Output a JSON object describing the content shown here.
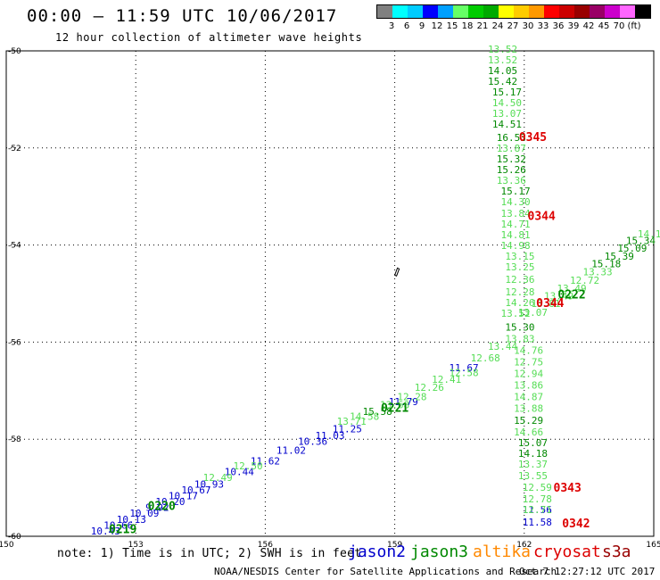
{
  "header": {
    "title": "00:00 — 11:59 UTC 10/06/2017",
    "subtitle": "12 hour collection of altimeter wave heights"
  },
  "color_scale": {
    "colors": [
      "#808080",
      "#00ffff",
      "#00ccff",
      "#0000ff",
      "#00a0ff",
      "#66ff66",
      "#00cc00",
      "#00aa00",
      "#ffff00",
      "#ffcc00",
      "#ff9900",
      "#ff0000",
      "#cc0000",
      "#990000",
      "#990066",
      "#cc00cc",
      "#ff66ff",
      "#000000"
    ],
    "labels": [
      "3",
      "6",
      "9",
      "12",
      "15",
      "18",
      "21",
      "24",
      "27",
      "30",
      "33",
      "36",
      "39",
      "42",
      "45",
      "70",
      "(ft)"
    ]
  },
  "footer": {
    "note": "note: 1) Time is in UTC; 2) SWH is in feet",
    "satellites": [
      {
        "name": "jason2",
        "color": "#0000cc"
      },
      {
        "name": "jason3",
        "color": "#008800"
      },
      {
        "name": "altika",
        "color": "#ff8800"
      },
      {
        "name": "cryosat",
        "color": "#dd0000"
      },
      {
        "name": "s3a",
        "color": "#990000"
      }
    ],
    "credit": "NOAA/NESDIS Center for Satellite Applications and Research",
    "timestamp": "Oct  7 12:27:12 UTC 2017"
  },
  "chart_data": {
    "type": "scatter",
    "title": "00:00 — 11:59 UTC 10/06/2017",
    "subtitle": "12 hour collection of altimeter wave heights",
    "xlim": [
      150,
      165
    ],
    "ylim": [
      -60,
      -50
    ],
    "x_ticks": [
      "150",
      "153",
      "156",
      "159",
      "162",
      "165"
    ],
    "y_ticks": [
      "-50",
      "-52",
      "-54",
      "-56",
      "-58",
      "-60"
    ],
    "grid": true,
    "colors": {
      "light": "#55dd55",
      "dark": "#008800",
      "blue": "#0000cc",
      "red": "#dd0000"
    },
    "series": [
      {
        "name": "jason2",
        "labels": [
          {
            "x": 152.3,
            "y": -59.96,
            "t": "10.43",
            "c": "blue"
          },
          {
            "x": 152.6,
            "y": -59.84,
            "t": "10.66",
            "c": "blue"
          },
          {
            "x": 152.9,
            "y": -59.72,
            "t": "10.13",
            "c": "blue"
          },
          {
            "x": 153.2,
            "y": -59.6,
            "t": "10.09",
            "c": "blue"
          },
          {
            "x": 153.5,
            "y": -59.48,
            "t": "9.92",
            "c": "blue"
          },
          {
            "x": 153.8,
            "y": -59.36,
            "t": "10.20",
            "c": "blue"
          },
          {
            "x": 154.1,
            "y": -59.24,
            "t": "10.17",
            "c": "blue"
          },
          {
            "x": 154.4,
            "y": -59.12,
            "t": "10.67",
            "c": "blue"
          },
          {
            "x": 154.7,
            "y": -59.0,
            "t": "10.93",
            "c": "blue"
          },
          {
            "x": 155.4,
            "y": -58.74,
            "t": "10.44",
            "c": "blue"
          },
          {
            "x": 156.0,
            "y": -58.52,
            "t": "11.62",
            "c": "blue"
          },
          {
            "x": 156.6,
            "y": -58.3,
            "t": "11.02",
            "c": "blue"
          },
          {
            "x": 157.1,
            "y": -58.12,
            "t": "10.36",
            "c": "blue"
          },
          {
            "x": 157.5,
            "y": -58.0,
            "t": "11.03",
            "c": "blue"
          },
          {
            "x": 157.9,
            "y": -57.86,
            "t": "11.25",
            "c": "blue"
          },
          {
            "x": 159.2,
            "y": -57.3,
            "t": "11.79",
            "c": "blue"
          },
          {
            "x": 160.6,
            "y": -56.6,
            "t": "11.67",
            "c": "blue"
          },
          {
            "x": 162.3,
            "y": -59.52,
            "t": "11.56",
            "c": "blue"
          },
          {
            "x": 162.3,
            "y": -59.78,
            "t": "11.58",
            "c": "blue"
          }
        ]
      },
      {
        "name": "jason3",
        "labels": [
          {
            "x": 161.5,
            "y": -50.04,
            "t": "13.52",
            "c": "light"
          },
          {
            "x": 161.5,
            "y": -50.26,
            "t": "13.52",
            "c": "light"
          },
          {
            "x": 161.5,
            "y": -50.48,
            "t": "14.05",
            "c": "dark"
          },
          {
            "x": 161.5,
            "y": -50.7,
            "t": "15.42",
            "c": "dark"
          },
          {
            "x": 161.6,
            "y": -50.92,
            "t": "15.17",
            "c": "dark"
          },
          {
            "x": 161.6,
            "y": -51.14,
            "t": "14.50",
            "c": "light"
          },
          {
            "x": 161.6,
            "y": -51.36,
            "t": "13.07",
            "c": "light"
          },
          {
            "x": 161.6,
            "y": -51.58,
            "t": "14.51",
            "c": "dark"
          },
          {
            "x": 161.7,
            "y": -51.86,
            "t": "16.53",
            "c": "dark"
          },
          {
            "x": 161.7,
            "y": -52.08,
            "t": "13.87",
            "c": "light"
          },
          {
            "x": 161.7,
            "y": -52.3,
            "t": "15.32",
            "c": "dark"
          },
          {
            "x": 161.7,
            "y": -52.52,
            "t": "15.26",
            "c": "dark"
          },
          {
            "x": 161.7,
            "y": -52.74,
            "t": "13.36",
            "c": "light"
          },
          {
            "x": 161.8,
            "y": -52.96,
            "t": "15.17",
            "c": "dark"
          },
          {
            "x": 161.8,
            "y": -53.18,
            "t": "14.30",
            "c": "light"
          },
          {
            "x": 161.8,
            "y": -53.42,
            "t": "13.84",
            "c": "light"
          },
          {
            "x": 161.8,
            "y": -53.64,
            "t": "14.71",
            "c": "light"
          },
          {
            "x": 161.8,
            "y": -53.86,
            "t": "14.81",
            "c": "light"
          },
          {
            "x": 161.8,
            "y": -54.08,
            "t": "14.98",
            "c": "light"
          },
          {
            "x": 161.9,
            "y": -54.3,
            "t": "13.15",
            "c": "light"
          },
          {
            "x": 161.9,
            "y": -54.52,
            "t": "13.25",
            "c": "light"
          },
          {
            "x": 161.9,
            "y": -54.78,
            "t": "12.36",
            "c": "light"
          },
          {
            "x": 161.9,
            "y": -55.04,
            "t": "12.28",
            "c": "light"
          },
          {
            "x": 161.9,
            "y": -55.26,
            "t": "14.26",
            "c": "light"
          },
          {
            "x": 161.8,
            "y": -55.48,
            "t": "13.52",
            "c": "light"
          },
          {
            "x": 161.9,
            "y": -55.76,
            "t": "15.30",
            "c": "dark"
          },
          {
            "x": 161.9,
            "y": -56.0,
            "t": "13.83",
            "c": "light"
          },
          {
            "x": 162.1,
            "y": -56.24,
            "t": "14.76",
            "c": "light"
          },
          {
            "x": 162.1,
            "y": -56.48,
            "t": "12.75",
            "c": "light"
          },
          {
            "x": 162.1,
            "y": -56.72,
            "t": "12.94",
            "c": "light"
          },
          {
            "x": 162.1,
            "y": -56.96,
            "t": "13.86",
            "c": "light"
          },
          {
            "x": 162.1,
            "y": -57.2,
            "t": "14.87",
            "c": "light"
          },
          {
            "x": 162.1,
            "y": -57.44,
            "t": "13.88",
            "c": "light"
          },
          {
            "x": 162.1,
            "y": -57.68,
            "t": "15.29",
            "c": "dark"
          },
          {
            "x": 162.1,
            "y": -57.92,
            "t": "14.66",
            "c": "light"
          },
          {
            "x": 162.2,
            "y": -58.14,
            "t": "15.07",
            "c": "dark"
          },
          {
            "x": 162.2,
            "y": -58.36,
            "t": "14.18",
            "c": "dark"
          },
          {
            "x": 162.2,
            "y": -58.58,
            "t": "13.37",
            "c": "light"
          },
          {
            "x": 162.2,
            "y": -58.82,
            "t": "13.55",
            "c": "light"
          },
          {
            "x": 162.3,
            "y": -59.06,
            "t": "12.59",
            "c": "light"
          },
          {
            "x": 162.3,
            "y": -59.3,
            "t": "12.78",
            "c": "light"
          },
          {
            "x": 162.3,
            "y": -59.52,
            "t": "12.71",
            "c": "light"
          },
          {
            "x": 154.9,
            "y": -58.86,
            "t": "12.49",
            "c": "light"
          },
          {
            "x": 155.6,
            "y": -58.62,
            "t": "12.50",
            "c": "light"
          },
          {
            "x": 158.0,
            "y": -57.7,
            "t": "13.71",
            "c": "light"
          },
          {
            "x": 158.3,
            "y": -57.6,
            "t": "14.58",
            "c": "light"
          },
          {
            "x": 158.6,
            "y": -57.5,
            "t": "15.58",
            "c": "dark"
          },
          {
            "x": 159.0,
            "y": -57.36,
            "t": "13.68",
            "c": "light"
          },
          {
            "x": 159.4,
            "y": -57.2,
            "t": "12.28",
            "c": "light"
          },
          {
            "x": 159.8,
            "y": -57.0,
            "t": "12.26",
            "c": "light"
          },
          {
            "x": 160.2,
            "y": -56.84,
            "t": "12.41",
            "c": "light"
          },
          {
            "x": 160.6,
            "y": -56.7,
            "t": "12.58",
            "c": "light"
          },
          {
            "x": 161.1,
            "y": -56.4,
            "t": "12.68",
            "c": "light"
          },
          {
            "x": 161.5,
            "y": -56.16,
            "t": "13.44",
            "c": "light"
          },
          {
            "x": 162.2,
            "y": -55.46,
            "t": "13.07",
            "c": "light"
          },
          {
            "x": 162.5,
            "y": -55.28,
            "t": "13.81",
            "c": "light"
          },
          {
            "x": 162.8,
            "y": -55.12,
            "t": "13.49",
            "c": "light"
          },
          {
            "x": 163.1,
            "y": -54.96,
            "t": "13.49",
            "c": "light"
          },
          {
            "x": 163.4,
            "y": -54.8,
            "t": "12.72",
            "c": "light"
          },
          {
            "x": 163.7,
            "y": -54.62,
            "t": "13.33",
            "c": "light"
          },
          {
            "x": 163.9,
            "y": -54.46,
            "t": "15.18",
            "c": "dark"
          },
          {
            "x": 164.2,
            "y": -54.3,
            "t": "15.39",
            "c": "dark"
          },
          {
            "x": 164.5,
            "y": -54.14,
            "t": "15.09",
            "c": "dark"
          },
          {
            "x": 164.7,
            "y": -53.98,
            "t": "15.34",
            "c": "dark"
          },
          {
            "x": 164.9,
            "y": -53.84,
            "t": "14.1",
            "c": "light"
          }
        ]
      },
      {
        "name": "time",
        "labels": [
          {
            "x": 152.7,
            "y": -59.94,
            "t": "0219",
            "c": "dark",
            "big": true
          },
          {
            "x": 153.6,
            "y": -59.46,
            "t": "0220",
            "c": "dark",
            "big": true
          },
          {
            "x": 159.0,
            "y": -57.44,
            "t": "0221",
            "c": "dark",
            "big": true
          },
          {
            "x": 163.1,
            "y": -55.1,
            "t": "0222",
            "c": "dark",
            "big": true
          },
          {
            "x": 162.2,
            "y": -51.86,
            "t": "0345",
            "c": "red",
            "big": true
          },
          {
            "x": 162.4,
            "y": -53.48,
            "t": "0344",
            "c": "red",
            "big": true
          },
          {
            "x": 162.6,
            "y": -55.28,
            "t": "0344",
            "c": "red",
            "big": true
          },
          {
            "x": 163.0,
            "y": -59.08,
            "t": "0343",
            "c": "red",
            "big": true
          },
          {
            "x": 163.2,
            "y": -59.82,
            "t": "0342",
            "c": "red",
            "big": true
          }
        ]
      }
    ]
  }
}
